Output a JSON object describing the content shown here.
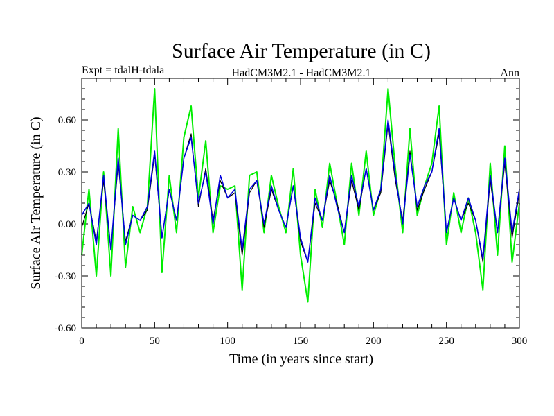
{
  "chart_data": {
    "type": "line",
    "title": "Surface Air Temperature (in C)",
    "subtitle_left": "Expt = tdalH-tdala",
    "subtitle_center": "HadCM3M2.1 - HadCM3M2.1",
    "subtitle_right": "Ann",
    "xlabel": "Time (in years since start)",
    "ylabel": "Surface Air Temperature (in C)",
    "xlim": [
      0,
      300
    ],
    "ylim": [
      -0.6,
      0.84
    ],
    "xticks": [
      0,
      50,
      100,
      150,
      200,
      250,
      300
    ],
    "xtick_labels": [
      "0",
      "50",
      "100",
      "150",
      "200",
      "250",
      "300"
    ],
    "yticks": [
      -0.6,
      -0.3,
      0.0,
      0.3,
      0.6
    ],
    "ytick_labels": [
      "-0.60",
      "-0.30",
      "0.00",
      "0.30",
      "0.60"
    ],
    "grid": false,
    "series": [
      {
        "name": "green",
        "color": "#00ee00",
        "stroke_width": 2,
        "x": [
          0,
          5,
          10,
          15,
          20,
          25,
          30,
          35,
          40,
          45,
          50,
          55,
          60,
          65,
          70,
          75,
          80,
          85,
          90,
          95,
          100,
          105,
          110,
          115,
          120,
          125,
          130,
          135,
          140,
          145,
          150,
          155,
          160,
          165,
          170,
          175,
          180,
          185,
          190,
          195,
          200,
          205,
          210,
          215,
          220,
          225,
          230,
          235,
          240,
          245,
          250,
          255,
          260,
          265,
          270,
          275,
          280,
          285,
          290,
          295,
          300
        ],
        "values": [
          -0.18,
          0.2,
          -0.3,
          0.3,
          -0.3,
          0.55,
          -0.25,
          0.1,
          -0.05,
          0.1,
          0.78,
          -0.28,
          0.28,
          -0.05,
          0.5,
          0.68,
          0.15,
          0.48,
          -0.05,
          0.22,
          0.2,
          0.22,
          -0.38,
          0.28,
          0.3,
          -0.05,
          0.28,
          0.1,
          -0.05,
          0.32,
          -0.18,
          -0.45,
          0.2,
          -0.02,
          0.35,
          0.12,
          -0.12,
          0.35,
          0.05,
          0.42,
          0.05,
          0.2,
          0.78,
          0.32,
          -0.05,
          0.55,
          0.05,
          0.22,
          0.35,
          0.68,
          -0.12,
          0.18,
          -0.05,
          0.15,
          -0.05,
          -0.38,
          0.35,
          -0.18,
          0.45,
          -0.22,
          0.12
        ]
      },
      {
        "name": "black",
        "color": "#000000",
        "stroke_width": 1.2,
        "x": [
          0,
          5,
          10,
          15,
          20,
          25,
          30,
          35,
          40,
          45,
          50,
          55,
          60,
          65,
          70,
          75,
          80,
          85,
          90,
          95,
          100,
          105,
          110,
          115,
          120,
          125,
          130,
          135,
          140,
          145,
          150,
          155,
          160,
          165,
          170,
          175,
          180,
          185,
          190,
          195,
          200,
          205,
          210,
          215,
          220,
          225,
          230,
          235,
          240,
          245,
          250,
          255,
          260,
          265,
          270,
          275,
          280,
          285,
          290,
          295,
          300
        ],
        "values": [
          -0.02,
          0.12,
          -0.1,
          0.25,
          -0.15,
          0.35,
          -0.1,
          0.05,
          0.02,
          0.08,
          0.4,
          -0.08,
          0.2,
          0.02,
          0.38,
          0.52,
          0.1,
          0.32,
          0.02,
          0.25,
          0.15,
          0.18,
          -0.18,
          0.18,
          0.25,
          -0.02,
          0.2,
          0.08,
          -0.02,
          0.22,
          -0.1,
          -0.22,
          0.12,
          0.02,
          0.25,
          0.12,
          -0.05,
          0.25,
          0.08,
          0.32,
          0.08,
          0.18,
          0.58,
          0.25,
          0.02,
          0.42,
          0.08,
          0.2,
          0.3,
          0.52,
          -0.05,
          0.15,
          0.02,
          0.12,
          0.02,
          -0.22,
          0.25,
          -0.05,
          0.35,
          -0.08,
          0.18
        ]
      },
      {
        "name": "blue",
        "color": "#0000dd",
        "stroke_width": 1.6,
        "x": [
          0,
          5,
          10,
          15,
          20,
          25,
          30,
          35,
          40,
          45,
          50,
          55,
          60,
          65,
          70,
          75,
          80,
          85,
          90,
          95,
          100,
          105,
          110,
          115,
          120,
          125,
          130,
          135,
          140,
          145,
          150,
          155,
          160,
          165,
          170,
          175,
          180,
          185,
          190,
          195,
          200,
          205,
          210,
          215,
          220,
          225,
          230,
          235,
          240,
          245,
          250,
          255,
          260,
          265,
          270,
          275,
          280,
          285,
          290,
          295,
          300
        ],
        "values": [
          0.05,
          0.12,
          -0.12,
          0.28,
          -0.15,
          0.38,
          -0.12,
          0.05,
          0.02,
          0.1,
          0.42,
          -0.08,
          0.2,
          0.02,
          0.38,
          0.5,
          0.12,
          0.3,
          0.0,
          0.28,
          0.15,
          0.2,
          -0.15,
          0.2,
          0.25,
          0.0,
          0.22,
          0.08,
          -0.02,
          0.22,
          -0.08,
          -0.22,
          0.15,
          0.02,
          0.28,
          0.1,
          -0.05,
          0.28,
          0.1,
          0.32,
          0.08,
          0.2,
          0.6,
          0.28,
          0.0,
          0.4,
          0.1,
          0.22,
          0.3,
          0.55,
          -0.05,
          0.15,
          0.02,
          0.15,
          0.02,
          -0.2,
          0.28,
          -0.05,
          0.38,
          -0.05,
          0.2
        ]
      }
    ]
  }
}
